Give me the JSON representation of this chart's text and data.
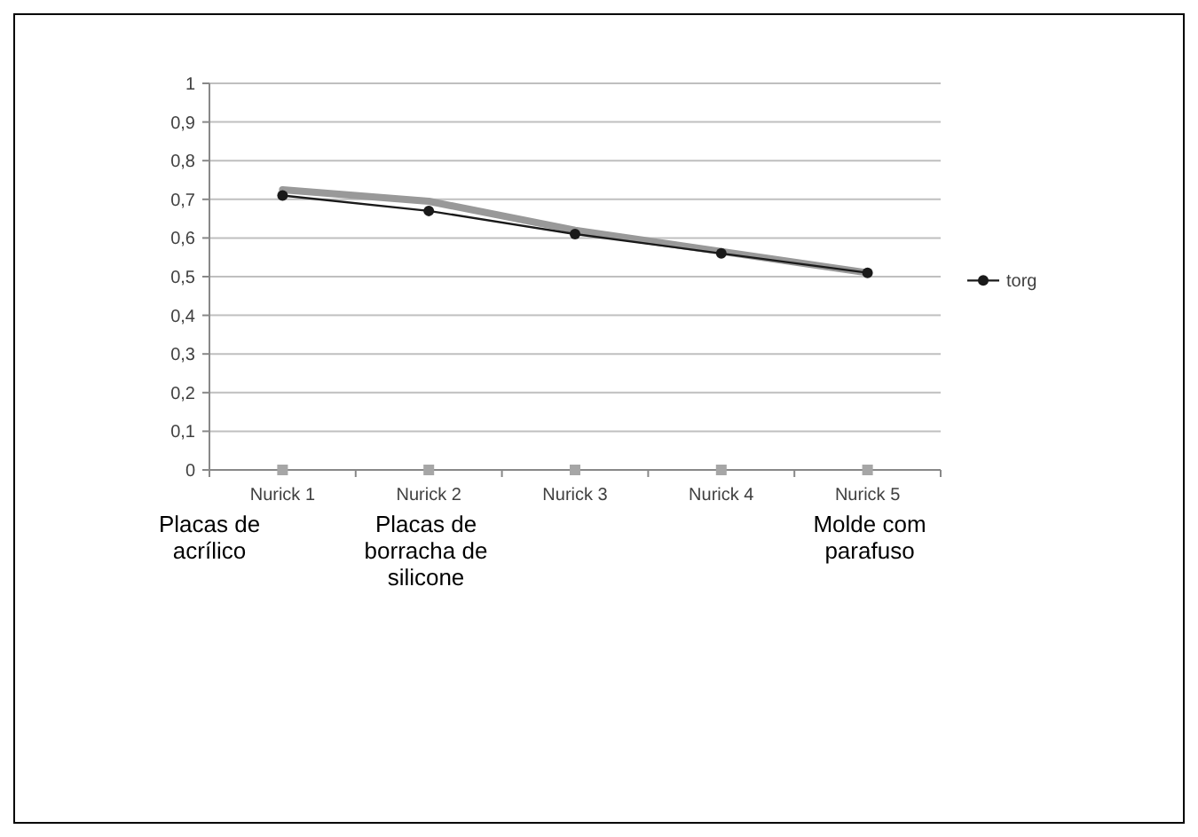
{
  "chart_data": {
    "type": "line",
    "categories": [
      "Nurick 1",
      "Nurick 2",
      "Nurick 3",
      "Nurick 4",
      "Nurick 5"
    ],
    "series": [
      {
        "type": "line",
        "color": "#999999",
        "values": [
          0.725,
          0.695,
          0.62,
          0.565,
          0.51
        ],
        "marker": "none"
      },
      {
        "name": "torg",
        "type": "line",
        "color": "#1a1a1a",
        "values": [
          0.71,
          0.67,
          0.61,
          0.56,
          0.51
        ],
        "marker": "circle"
      },
      {
        "type": "scatter",
        "color": "#a6a6a6",
        "values": [
          0,
          0,
          0,
          0,
          0
        ],
        "marker": "square"
      }
    ],
    "ylim": [
      0,
      1
    ],
    "yticks": [
      {
        "value": 0,
        "label": "0"
      },
      {
        "value": 0.1,
        "label": "0,1"
      },
      {
        "value": 0.2,
        "label": "0,2"
      },
      {
        "value": 0.3,
        "label": "0,3"
      },
      {
        "value": 0.4,
        "label": "0,4"
      },
      {
        "value": 0.5,
        "label": "0,5"
      },
      {
        "value": 0.6,
        "label": "0,6"
      },
      {
        "value": 0.7,
        "label": "0,7"
      },
      {
        "value": 0.8,
        "label": "0,8"
      },
      {
        "value": 0.9,
        "label": "0,9"
      },
      {
        "value": 1,
        "label": "1"
      }
    ],
    "grid": "y",
    "legend": "right",
    "annotations": [
      "Placas de acrílico",
      "Placas de borracha de silicone",
      "Molde com parafuso"
    ]
  }
}
